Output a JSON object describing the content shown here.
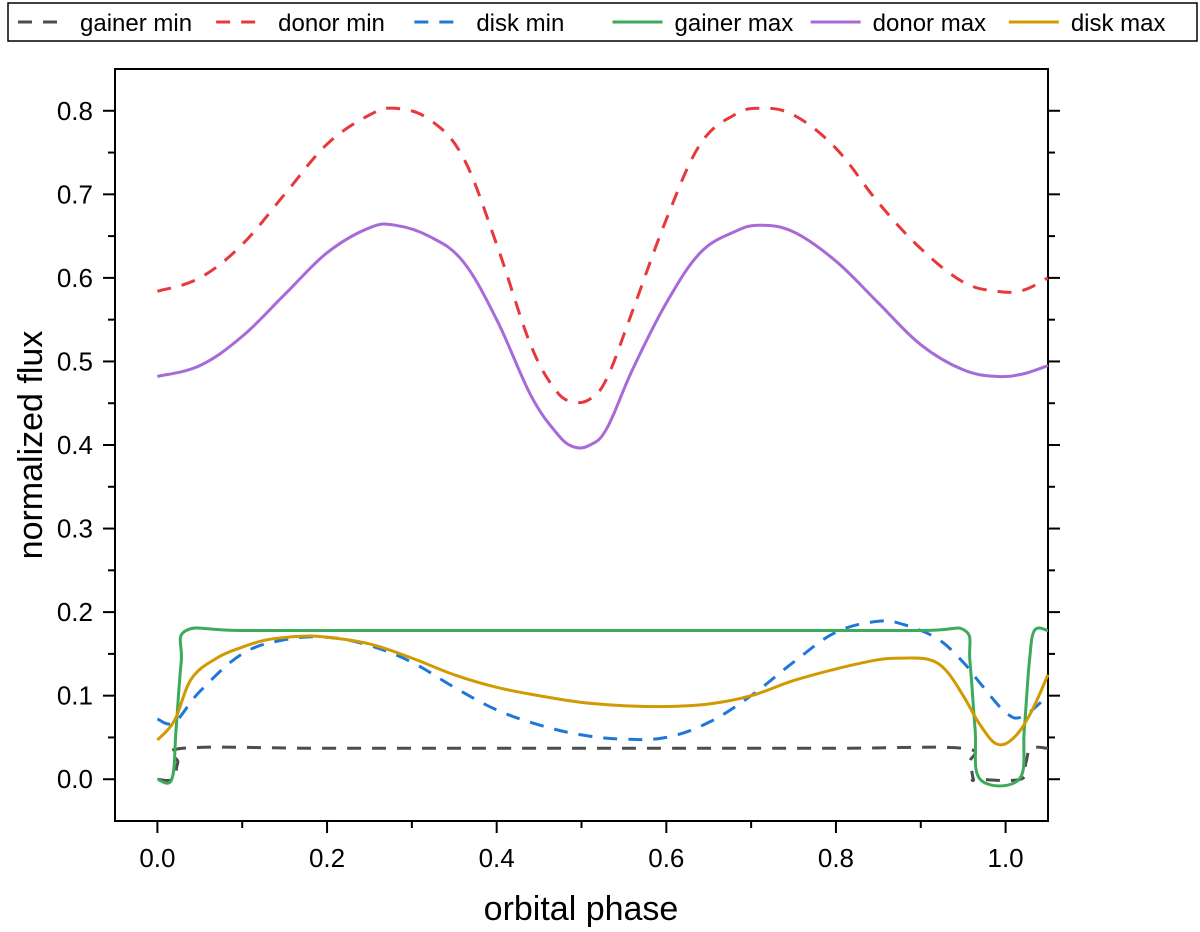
{
  "chart_data": {
    "type": "line",
    "title": "",
    "xlabel": "orbital phase",
    "ylabel": "normalized flux",
    "xlim": [
      -0.05,
      1.05
    ],
    "ylim": [
      -0.05,
      0.85
    ],
    "xticks": [
      0.0,
      0.2,
      0.4,
      0.6,
      0.8,
      1.0
    ],
    "xtick_labels": [
      "0.0",
      "0.2",
      "0.4",
      "0.6",
      "0.8",
      "1.0"
    ],
    "yticks": [
      0.0,
      0.1,
      0.2,
      0.3,
      0.4,
      0.5,
      0.6,
      0.7,
      0.8
    ],
    "ytick_labels": [
      "0.0",
      "0.1",
      "0.2",
      "0.3",
      "0.4",
      "0.5",
      "0.6",
      "0.7",
      "0.8"
    ],
    "legend_position": "top (outside, boxed)",
    "series": [
      {
        "name": "gainer min",
        "color": "#4d4d4d",
        "dash": "dashed",
        "x": [
          0.0,
          0.018,
          0.024,
          0.03,
          0.2,
          0.4,
          0.6,
          0.8,
          0.95,
          0.958,
          0.962,
          0.966,
          1.018,
          1.024,
          1.03,
          1.05
        ],
        "y": [
          0.0,
          0.0,
          0.02,
          0.037,
          0.037,
          0.037,
          0.037,
          0.037,
          0.037,
          0.02,
          0.0,
          0.0,
          0.0,
          0.02,
          0.037,
          0.037
        ]
      },
      {
        "name": "donor min",
        "color": "#e8383b",
        "dash": "dashed",
        "x": [
          0.0,
          0.05,
          0.1,
          0.15,
          0.2,
          0.25,
          0.28,
          0.32,
          0.36,
          0.4,
          0.44,
          0.47,
          0.49,
          0.51,
          0.53,
          0.56,
          0.6,
          0.64,
          0.68,
          0.71,
          0.75,
          0.8,
          0.85,
          0.9,
          0.95,
          0.99,
          1.02,
          1.05
        ],
        "y": [
          0.584,
          0.6,
          0.64,
          0.7,
          0.76,
          0.795,
          0.803,
          0.79,
          0.745,
          0.64,
          0.52,
          0.465,
          0.452,
          0.455,
          0.48,
          0.56,
          0.67,
          0.76,
          0.795,
          0.803,
          0.795,
          0.755,
          0.69,
          0.635,
          0.595,
          0.584,
          0.585,
          0.6
        ]
      },
      {
        "name": "disk min",
        "color": "#1f77d9",
        "dash": "dashed",
        "x": [
          0.0,
          0.02,
          0.05,
          0.1,
          0.15,
          0.2,
          0.25,
          0.3,
          0.35,
          0.4,
          0.45,
          0.5,
          0.55,
          0.6,
          0.65,
          0.7,
          0.75,
          0.8,
          0.85,
          0.88,
          0.92,
          0.95,
          0.97,
          1.0,
          1.02,
          1.05
        ],
        "y": [
          0.072,
          0.068,
          0.105,
          0.15,
          0.167,
          0.17,
          0.16,
          0.14,
          0.11,
          0.083,
          0.065,
          0.053,
          0.048,
          0.05,
          0.068,
          0.1,
          0.14,
          0.176,
          0.189,
          0.185,
          0.168,
          0.14,
          0.115,
          0.08,
          0.075,
          0.1
        ]
      },
      {
        "name": "gainer max",
        "color": "#3daa5b",
        "dash": "solid",
        "x": [
          0.0,
          0.017,
          0.022,
          0.028,
          0.034,
          0.1,
          0.3,
          0.5,
          0.7,
          0.9,
          0.952,
          0.958,
          0.964,
          0.97,
          1.016,
          1.022,
          1.028,
          1.034,
          1.05
        ],
        "y": [
          0.0,
          0.0,
          0.06,
          0.14,
          0.178,
          0.178,
          0.178,
          0.178,
          0.178,
          0.178,
          0.178,
          0.14,
          0.06,
          0.0,
          0.0,
          0.06,
          0.14,
          0.178,
          0.178
        ]
      },
      {
        "name": "donor max",
        "color": "#a86ad8",
        "dash": "solid",
        "x": [
          0.0,
          0.05,
          0.1,
          0.15,
          0.2,
          0.25,
          0.28,
          0.32,
          0.36,
          0.4,
          0.44,
          0.47,
          0.49,
          0.51,
          0.53,
          0.56,
          0.6,
          0.64,
          0.68,
          0.71,
          0.75,
          0.8,
          0.85,
          0.9,
          0.95,
          0.99,
          1.02,
          1.05
        ],
        "y": [
          0.482,
          0.495,
          0.53,
          0.58,
          0.63,
          0.66,
          0.663,
          0.65,
          0.62,
          0.55,
          0.46,
          0.415,
          0.398,
          0.4,
          0.42,
          0.49,
          0.57,
          0.63,
          0.655,
          0.663,
          0.655,
          0.62,
          0.57,
          0.52,
          0.49,
          0.482,
          0.485,
          0.495
        ]
      },
      {
        "name": "disk max",
        "color": "#d09a00",
        "dash": "solid",
        "x": [
          0.0,
          0.02,
          0.04,
          0.07,
          0.1,
          0.13,
          0.17,
          0.2,
          0.25,
          0.3,
          0.35,
          0.4,
          0.45,
          0.5,
          0.55,
          0.6,
          0.65,
          0.7,
          0.75,
          0.8,
          0.85,
          0.88,
          0.91,
          0.93,
          0.95,
          0.97,
          0.99,
          1.01,
          1.03,
          1.05
        ],
        "y": [
          0.047,
          0.07,
          0.12,
          0.145,
          0.158,
          0.167,
          0.171,
          0.17,
          0.162,
          0.145,
          0.125,
          0.11,
          0.1,
          0.092,
          0.088,
          0.087,
          0.09,
          0.1,
          0.118,
          0.132,
          0.143,
          0.145,
          0.143,
          0.13,
          0.1,
          0.065,
          0.042,
          0.05,
          0.08,
          0.125
        ]
      }
    ]
  }
}
